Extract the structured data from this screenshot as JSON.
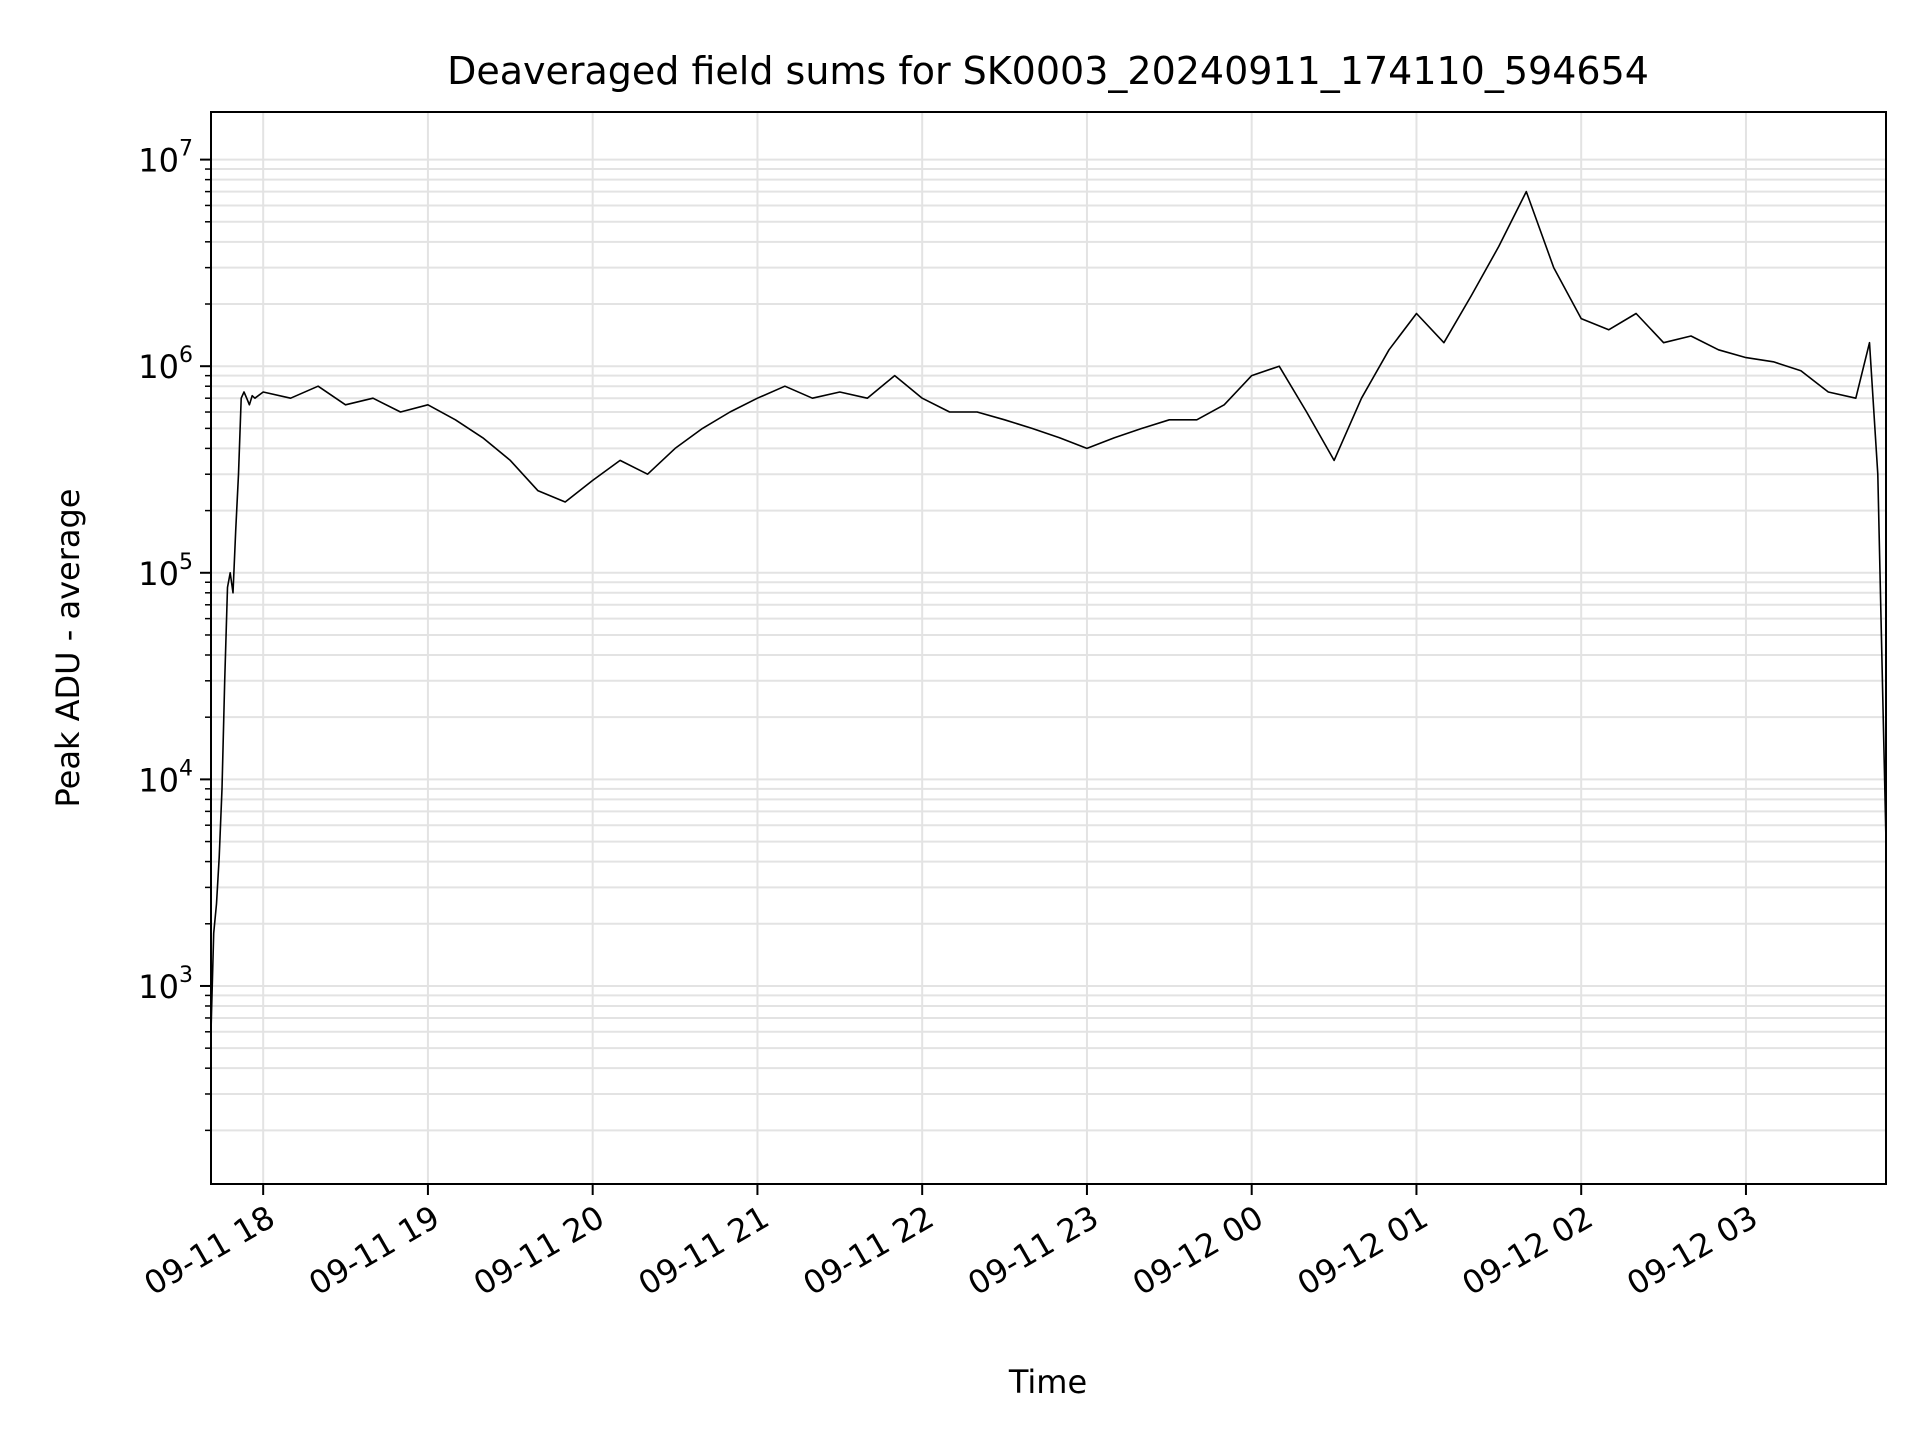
{
  "chart_data": {
    "type": "line",
    "title": "Deaveraged field sums for SK0003_20240911_174110_594654",
    "xlabel": "Time",
    "ylabel": "Peak ADU - average",
    "yscale": "log",
    "ylim": [
      110,
      17000000
    ],
    "xlim": [
      "2024-09-11 17:41",
      "2024-09-12 03:51"
    ],
    "grid": true,
    "colors": {
      "line": "#000000",
      "grid": "#e3e3e3",
      "axes": "#000000"
    },
    "x_tick_labels": [
      "09-11 18",
      "09-11 19",
      "09-11 20",
      "09-11 21",
      "09-11 22",
      "09-11 23",
      "09-12 00",
      "09-12 01",
      "09-12 02",
      "09-12 03"
    ],
    "x_tick_values": [
      "2024-09-11 18:00",
      "2024-09-11 19:00",
      "2024-09-11 20:00",
      "2024-09-11 21:00",
      "2024-09-11 22:00",
      "2024-09-11 23:00",
      "2024-09-12 00:00",
      "2024-09-12 01:00",
      "2024-09-12 02:00",
      "2024-09-12 03:00"
    ],
    "y_tick_values": [
      1000,
      10000,
      100000,
      1000000,
      10000000
    ],
    "y_tick_labels": [
      {
        "base": "10",
        "exp": "3"
      },
      {
        "base": "10",
        "exp": "4"
      },
      {
        "base": "10",
        "exp": "5"
      },
      {
        "base": "10",
        "exp": "6"
      },
      {
        "base": "10",
        "exp": "7"
      }
    ],
    "series": [
      {
        "x": [
          "2024-09-11 17:41",
          "2024-09-11 17:42",
          "2024-09-11 17:43",
          "2024-09-11 17:44",
          "2024-09-11 17:45",
          "2024-09-11 17:46",
          "2024-09-11 17:47",
          "2024-09-11 17:48",
          "2024-09-11 17:49",
          "2024-09-11 17:50",
          "2024-09-11 17:51",
          "2024-09-11 17:52",
          "2024-09-11 17:53",
          "2024-09-11 17:54",
          "2024-09-11 17:55",
          "2024-09-11 17:56",
          "2024-09-11 17:57",
          "2024-09-11 18:00",
          "2024-09-11 18:10",
          "2024-09-11 18:20",
          "2024-09-11 18:30",
          "2024-09-11 18:40",
          "2024-09-11 18:50",
          "2024-09-11 19:00",
          "2024-09-11 19:10",
          "2024-09-11 19:20",
          "2024-09-11 19:30",
          "2024-09-11 19:40",
          "2024-09-11 19:50",
          "2024-09-11 20:00",
          "2024-09-11 20:10",
          "2024-09-11 20:20",
          "2024-09-11 20:30",
          "2024-09-11 20:40",
          "2024-09-11 20:50",
          "2024-09-11 21:00",
          "2024-09-11 21:10",
          "2024-09-11 21:20",
          "2024-09-11 21:30",
          "2024-09-11 21:40",
          "2024-09-11 21:50",
          "2024-09-11 22:00",
          "2024-09-11 22:10",
          "2024-09-11 22:20",
          "2024-09-11 22:30",
          "2024-09-11 22:40",
          "2024-09-11 22:50",
          "2024-09-11 23:00",
          "2024-09-11 23:10",
          "2024-09-11 23:20",
          "2024-09-11 23:30",
          "2024-09-11 23:40",
          "2024-09-11 23:50",
          "2024-09-12 00:00",
          "2024-09-12 00:10",
          "2024-09-12 00:20",
          "2024-09-12 00:30",
          "2024-09-12 00:40",
          "2024-09-12 00:50",
          "2024-09-12 01:00",
          "2024-09-12 01:10",
          "2024-09-12 01:20",
          "2024-09-12 01:30",
          "2024-09-12 01:40",
          "2024-09-12 01:50",
          "2024-09-12 02:00",
          "2024-09-12 02:10",
          "2024-09-12 02:20",
          "2024-09-12 02:30",
          "2024-09-12 02:40",
          "2024-09-12 02:50",
          "2024-09-12 03:00",
          "2024-09-12 03:10",
          "2024-09-12 03:20",
          "2024-09-12 03:30",
          "2024-09-12 03:40",
          "2024-09-12 03:45",
          "2024-09-12 03:48",
          "2024-09-12 03:51"
        ],
        "values": [
          600,
          1800,
          2500,
          4200,
          9000,
          30000,
          85000,
          100000,
          80000,
          160000,
          300000,
          700000,
          750000,
          700000,
          650000,
          720000,
          700000,
          750000,
          700000,
          800000,
          650000,
          700000,
          600000,
          650000,
          550000,
          450000,
          350000,
          250000,
          220000,
          280000,
          350000,
          300000,
          400000,
          500000,
          600000,
          700000,
          800000,
          700000,
          750000,
          700000,
          900000,
          700000,
          600000,
          600000,
          550000,
          500000,
          450000,
          400000,
          450000,
          500000,
          550000,
          550000,
          650000,
          900000,
          1000000,
          600000,
          350000,
          700000,
          1200000,
          1800000,
          1300000,
          2200000,
          3800000,
          7000000,
          3000000,
          1700000,
          1500000,
          1800000,
          1300000,
          1400000,
          1200000,
          1100000,
          1050000,
          950000,
          750000,
          700000,
          1300000,
          300000,
          5000
        ]
      }
    ]
  }
}
